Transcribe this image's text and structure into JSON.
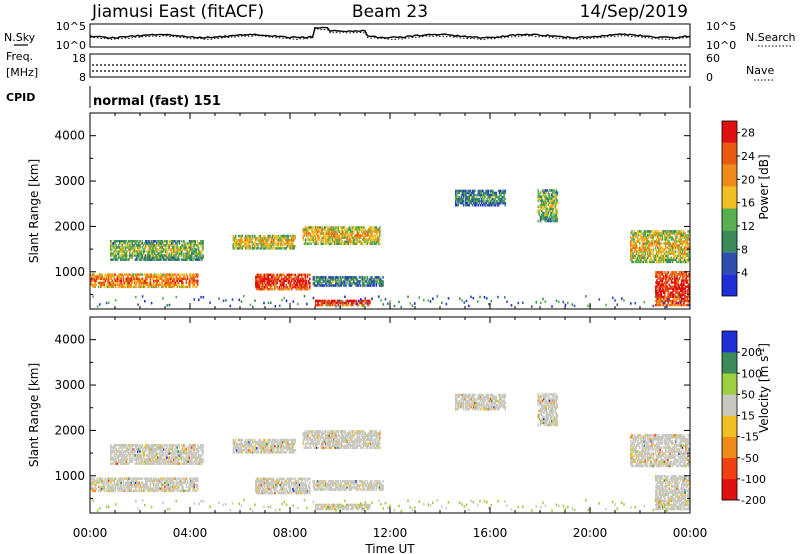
{
  "header": {
    "station": "Jiamusi East (fitACF)",
    "beam": "Beam 23",
    "date": "14/Sep/2019"
  },
  "panels": {
    "nsky": {
      "left_label": "N.Sky",
      "right_label": "N.Search",
      "left_ticks": [
        "10^5",
        "10^0"
      ],
      "right_ticks": [
        "10^5",
        "10^0"
      ]
    },
    "freq": {
      "left_label_1": "Freq.",
      "left_label_2": "[MHz]",
      "right_label": "Nave",
      "left_ticks": [
        "18",
        "8"
      ],
      "right_ticks": [
        "60",
        "0"
      ]
    },
    "cpid": {
      "label": "CPID",
      "value": "normal (fast) 151"
    }
  },
  "colors": {
    "power_scale": [
      "#1f2fd6",
      "#2f4fb0",
      "#3a8a5a",
      "#58b050",
      "#f0c020",
      "#f08a18",
      "#e85a10",
      "#e01010"
    ],
    "velocity_scale": [
      "#e01010",
      "#f04010",
      "#f08a18",
      "#f0c020",
      "#c8c8c0",
      "#9cd040",
      "#3a8a5a",
      "#1f2fd6"
    ]
  },
  "chart_data": [
    {
      "type": "heatmap",
      "quantity": "Power",
      "ylabel": "Slant Range [km]",
      "ylim": [
        180,
        4500
      ],
      "yticks": [
        1000,
        2000,
        3000,
        4000
      ],
      "xlim_hours": [
        0,
        24
      ],
      "colorbar": {
        "label": "Power [dB]",
        "range": [
          0,
          30
        ],
        "ticks": [
          4,
          8,
          12,
          16,
          20,
          24,
          28
        ]
      },
      "echo_bands": [
        {
          "t_start": 0.0,
          "t_end": 4.3,
          "range_km": [
            650,
            950
          ],
          "level": "moderate-high"
        },
        {
          "t_start": 6.6,
          "t_end": 8.8,
          "range_km": [
            600,
            950
          ],
          "level": "high"
        },
        {
          "t_start": 8.9,
          "t_end": 11.7,
          "range_km": [
            680,
            900
          ],
          "level": "low"
        },
        {
          "t_start": 9.0,
          "t_end": 11.2,
          "range_km": [
            250,
            380
          ],
          "level": "high"
        },
        {
          "t_start": 5.7,
          "t_end": 8.2,
          "range_km": [
            1500,
            1800
          ],
          "level": "moderate"
        },
        {
          "t_start": 8.5,
          "t_end": 11.6,
          "range_km": [
            1600,
            2000
          ],
          "level": "moderate"
        },
        {
          "t_start": 0.8,
          "t_end": 4.5,
          "range_km": [
            1250,
            1700
          ],
          "level": "low-moderate"
        },
        {
          "t_start": 14.6,
          "t_end": 16.6,
          "range_km": [
            2450,
            2800
          ],
          "level": "low"
        },
        {
          "t_start": 17.9,
          "t_end": 18.7,
          "range_km": [
            2100,
            2800
          ],
          "level": "low-moderate"
        },
        {
          "t_start": 21.6,
          "t_end": 24.0,
          "range_km": [
            1200,
            1900
          ],
          "level": "moderate"
        },
        {
          "t_start": 22.6,
          "t_end": 24.0,
          "range_km": [
            250,
            1000
          ],
          "level": "high"
        }
      ]
    },
    {
      "type": "heatmap",
      "quantity": "Velocity",
      "ylabel": "Slant Range [km]",
      "ylim": [
        180,
        4500
      ],
      "yticks": [
        1000,
        2000,
        3000,
        4000
      ],
      "xlim_hours": [
        0,
        24
      ],
      "xticks": [
        "00:00",
        "04:00",
        "08:00",
        "12:00",
        "16:00",
        "20:00",
        "00:00"
      ],
      "xlabel": "Time UT",
      "colorbar": {
        "label": "Velocity [m s^-1]",
        "bounds": [
          -250,
          -200,
          -100,
          -50,
          -15,
          15,
          50,
          100,
          250
        ],
        "ticks": [
          "200",
          "100",
          "50",
          "15",
          "-15",
          "-50",
          "-100",
          "-200"
        ]
      },
      "note": "Most echoes near zero velocity (ground scatter, grey)"
    }
  ]
}
